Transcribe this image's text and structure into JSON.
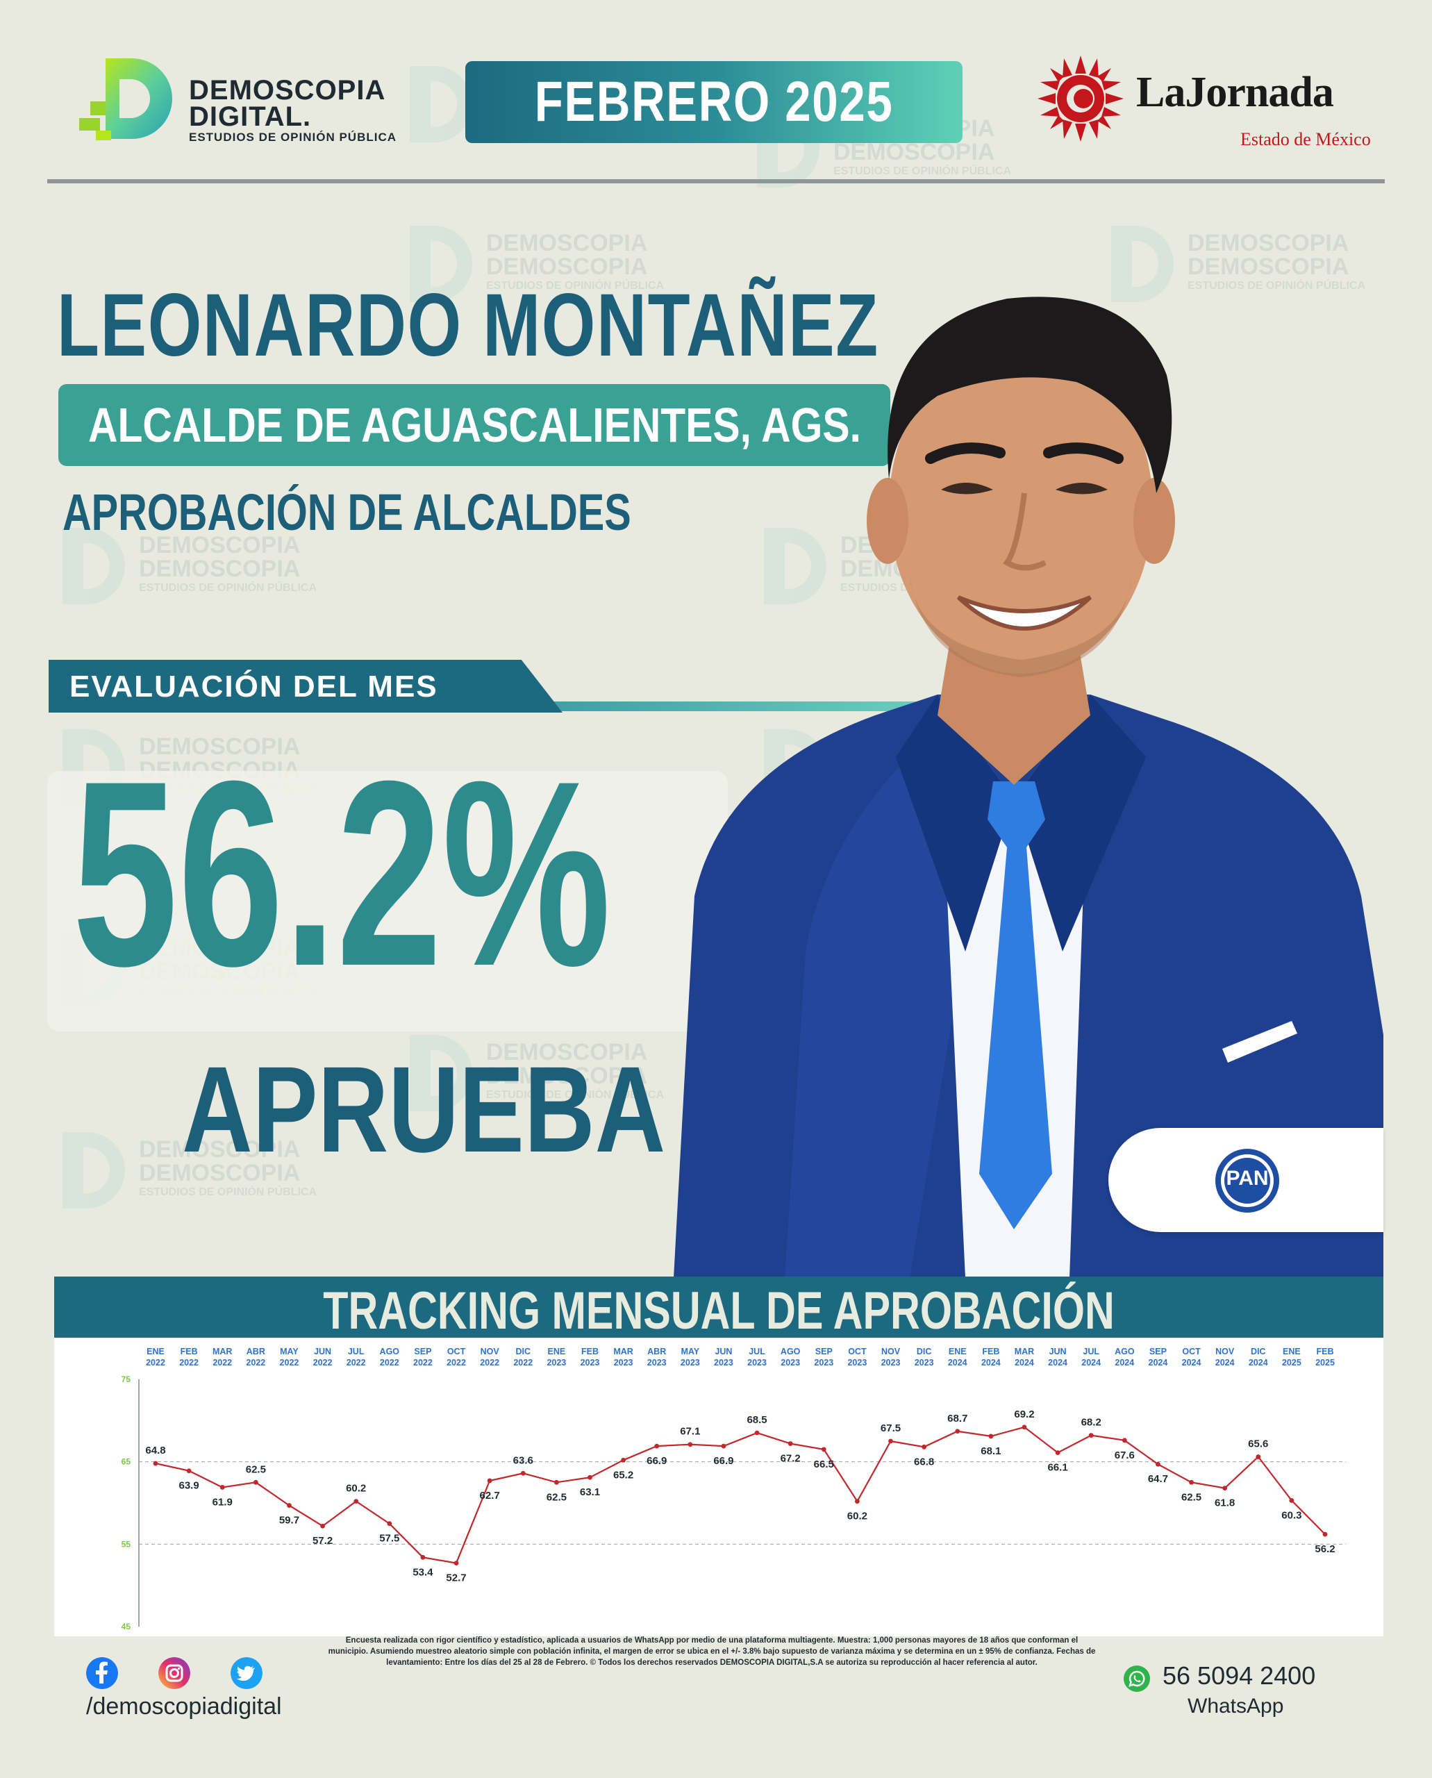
{
  "brand": {
    "name_line1": "DEMOSCOPIA",
    "name_line2": "DIGITAL.",
    "tagline": "ESTUDIOS DE OPINIÓN PÚBLICA"
  },
  "header": {
    "month": "FEBRERO 2025",
    "partner_name": "LaJornada",
    "partner_region": "Estado de México"
  },
  "subject": {
    "name": "LEONARDO MONTAÑEZ",
    "role": "ALCALDE DE AGUASCALIENTES, AGS.",
    "survey": "APROBACIÓN DE ALCALDES",
    "party": "PAN"
  },
  "evaluation": {
    "label": "EVALUACIÓN DEL MES",
    "value": "56.2%",
    "verdict": "APRUEBA"
  },
  "chart_data": {
    "type": "line",
    "title": "TRACKING MENSUAL DE APROBACIÓN",
    "x_months": [
      "ENE",
      "FEB",
      "MAR",
      "ABR",
      "MAY",
      "JUN",
      "JUL",
      "AGO",
      "SEP",
      "OCT",
      "NOV",
      "DIC",
      "ENE",
      "FEB",
      "MAR",
      "ABR",
      "MAY",
      "JUN",
      "JUL",
      "AGO",
      "SEP",
      "OCT",
      "NOV",
      "DIC",
      "ENE",
      "FEB",
      "MAR",
      "JUN",
      "JUL",
      "AGO",
      "SEP",
      "OCT",
      "NOV",
      "DIC",
      "ENE",
      "FEB"
    ],
    "x_years": [
      "2022",
      "2022",
      "2022",
      "2022",
      "2022",
      "2022",
      "2022",
      "2022",
      "2022",
      "2022",
      "2022",
      "2022",
      "2023",
      "2023",
      "2023",
      "2023",
      "2023",
      "2023",
      "2023",
      "2023",
      "2023",
      "2023",
      "2023",
      "2023",
      "2024",
      "2024",
      "2024",
      "2024",
      "2024",
      "2024",
      "2024",
      "2024",
      "2024",
      "2024",
      "2025",
      "2025"
    ],
    "values": [
      64.8,
      63.9,
      61.9,
      62.5,
      59.7,
      57.2,
      60.2,
      57.5,
      53.4,
      52.7,
      62.7,
      63.6,
      62.5,
      63.1,
      65.2,
      66.9,
      67.1,
      66.9,
      68.5,
      67.2,
      66.5,
      60.2,
      67.5,
      66.8,
      68.7,
      68.1,
      69.2,
      66.1,
      68.2,
      67.6,
      64.7,
      62.5,
      61.8,
      65.6,
      60.3,
      56.2
    ],
    "y_ticks": [
      "75",
      "65",
      "55",
      "45"
    ],
    "ylim": [
      45,
      75
    ],
    "grid": "dashed horizontal at 65 and 55",
    "line_color": "#c0282d"
  },
  "footer": {
    "social_handle": "/demoscopiadigital",
    "social_icons": [
      "facebook-icon",
      "instagram-icon",
      "twitter-icon"
    ],
    "disclaimer": "Encuesta realizada con rigor científico y estadístico, aplicada a usuarios de WhatsApp por medio de una plataforma multiagente. Muestra: 1,000 personas mayores de 18 años que conforman el municipio. Asumiendo muestreo aleatorio simple con población infinita, el margen de error se ubica en el +/- 3.8% bajo supuesto de varianza máxima y se determina en un ± 95% de confianza. Fechas de levantamiento: Entre los días del 25 al 28 de Febrero. © Todos los derechos reservados DEMOSCOPIA DIGITAL,S.A se autoriza su reproducción al hacer referencia al autor.",
    "phone": "56 5094 2400",
    "phone_label": "WhatsApp"
  },
  "colors": {
    "background": "#e9eadf",
    "primary": "#1d5e78",
    "accent": "#3aa294",
    "highlight": "#2d8b8d",
    "line": "#c0282d"
  }
}
